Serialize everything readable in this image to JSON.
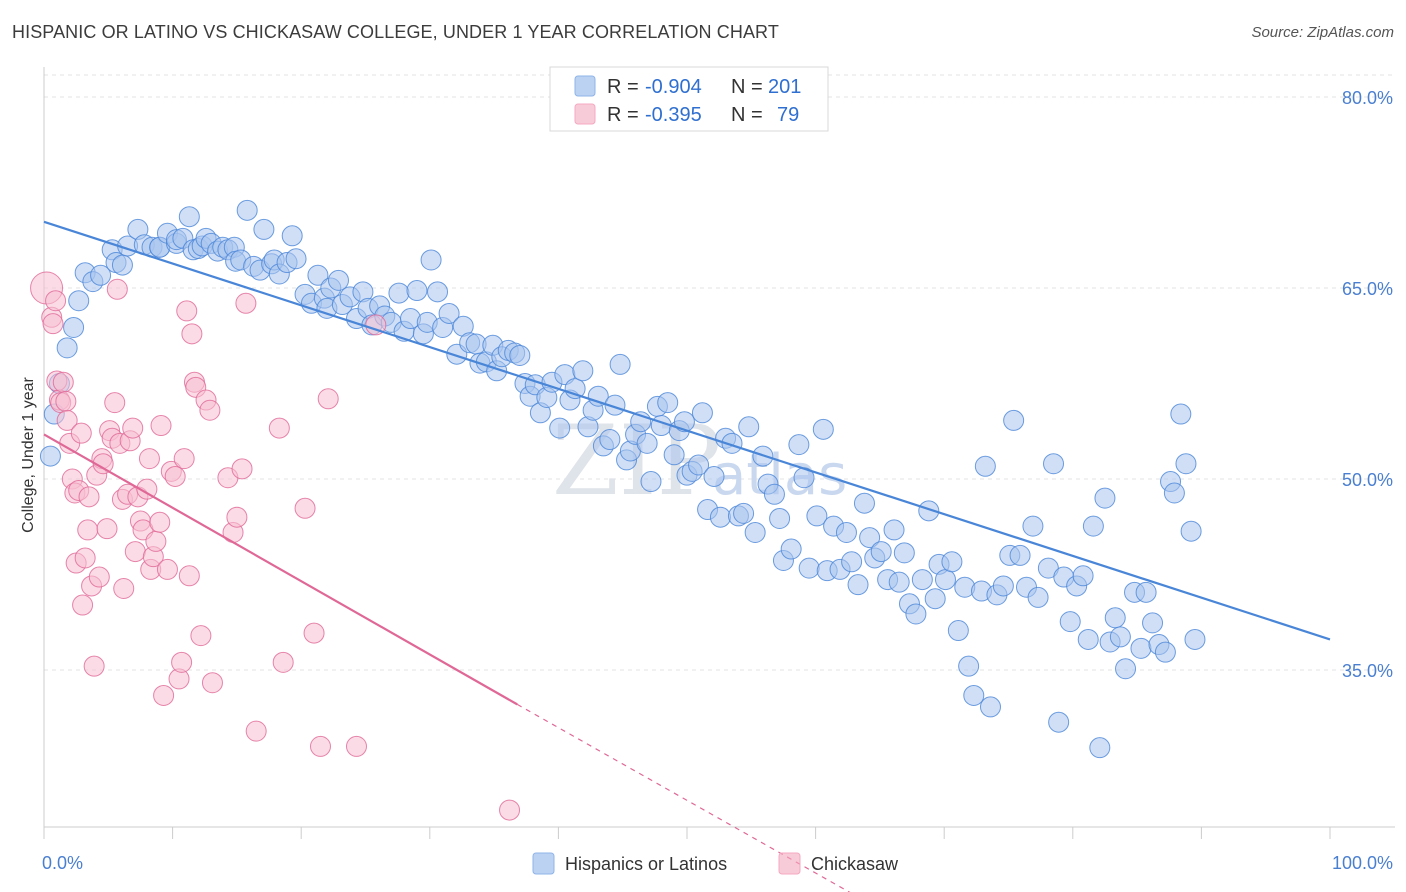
{
  "title": "HISPANIC OR LATINO VS CHICKASAW COLLEGE, UNDER 1 YEAR CORRELATION CHART",
  "source": "Source: ZipAtlas.com",
  "watermark": {
    "zip": "ZIP",
    "atlas": "atlas"
  },
  "legend_top": [
    {
      "r_label": "R =",
      "r_value": "-0.904",
      "n_label": "N =",
      "n_value": "201",
      "color": "#8fb4ea"
    },
    {
      "r_label": "R =",
      "r_value": "-0.395",
      "n_label": "N =",
      "n_value": "79",
      "color": "#f4a9c0"
    }
  ],
  "legend_bottom": [
    {
      "label": "Hispanics or Latinos",
      "color": "#8fb4ea"
    },
    {
      "label": "Chickasaw",
      "color": "#f4a9c0"
    }
  ],
  "chart_data": {
    "type": "scatter",
    "title": "HISPANIC OR LATINO VS CHICKASAW COLLEGE, UNDER 1 YEAR CORRELATION CHART",
    "xlabel": "",
    "ylabel": "College, Under 1 year",
    "xlim": [
      0,
      100
    ],
    "ylim": [
      20,
      83
    ],
    "x_tick_labels": [
      "0.0%",
      "100.0%"
    ],
    "y_ticks": [
      35,
      50,
      65,
      80
    ],
    "y_tick_labels": [
      "35.0%",
      "50.0%",
      "65.0%",
      "80.0%"
    ],
    "grid": true,
    "legend_placement": "top-center",
    "series": [
      {
        "name": "Hispanics or Latinos",
        "color": "#4a86d8",
        "fill": "#a9c5ee",
        "trend": {
          "x0": 0,
          "y0": 70.2,
          "x1": 100,
          "y1": 37.4,
          "dashed_from": null
        },
        "points": [
          [
            0.5,
            51.8
          ],
          [
            0.8,
            55.1
          ],
          [
            1.2,
            57.5
          ],
          [
            1.8,
            60.3
          ],
          [
            2.3,
            61.9
          ],
          [
            2.7,
            64.0
          ],
          [
            3.2,
            66.2
          ],
          [
            3.8,
            65.5
          ],
          [
            4.4,
            66.0
          ],
          [
            5.3,
            68.0
          ],
          [
            5.6,
            67.0
          ],
          [
            6.1,
            66.8
          ],
          [
            6.5,
            68.3
          ],
          [
            7.3,
            69.6
          ],
          [
            7.8,
            68.4
          ],
          [
            8.4,
            68.2
          ],
          [
            9.0,
            68.2
          ],
          [
            9.0,
            68.2
          ],
          [
            9.6,
            69.3
          ],
          [
            10.3,
            68.5
          ],
          [
            10.3,
            68.8
          ],
          [
            10.8,
            68.9
          ],
          [
            11.3,
            70.6
          ],
          [
            11.6,
            68.0
          ],
          [
            12.0,
            68.1
          ],
          [
            12.3,
            68.3
          ],
          [
            12.6,
            68.9
          ],
          [
            13.0,
            68.5
          ],
          [
            13.5,
            67.9
          ],
          [
            13.9,
            68.2
          ],
          [
            14.3,
            68.0
          ],
          [
            14.8,
            68.2
          ],
          [
            14.9,
            67.1
          ],
          [
            15.3,
            67.2
          ],
          [
            15.8,
            71.1
          ],
          [
            16.3,
            66.7
          ],
          [
            16.8,
            66.4
          ],
          [
            17.1,
            69.6
          ],
          [
            17.7,
            66.9
          ],
          [
            17.9,
            67.2
          ],
          [
            18.3,
            66.1
          ],
          [
            18.9,
            67.0
          ],
          [
            19.3,
            69.1
          ],
          [
            19.6,
            67.3
          ],
          [
            20.3,
            64.5
          ],
          [
            20.8,
            63.8
          ],
          [
            21.3,
            66.0
          ],
          [
            21.8,
            64.2
          ],
          [
            22.0,
            63.4
          ],
          [
            22.3,
            65.0
          ],
          [
            22.9,
            65.6
          ],
          [
            23.2,
            63.7
          ],
          [
            23.8,
            64.3
          ],
          [
            24.3,
            62.6
          ],
          [
            24.8,
            64.7
          ],
          [
            25.2,
            63.4
          ],
          [
            25.5,
            62.1
          ],
          [
            26.1,
            63.6
          ],
          [
            26.5,
            62.8
          ],
          [
            27.0,
            62.3
          ],
          [
            27.6,
            64.6
          ],
          [
            28.0,
            61.6
          ],
          [
            28.5,
            62.6
          ],
          [
            29.0,
            64.8
          ],
          [
            29.5,
            61.4
          ],
          [
            29.8,
            62.3
          ],
          [
            30.1,
            67.2
          ],
          [
            30.6,
            64.7
          ],
          [
            31.0,
            61.9
          ],
          [
            31.5,
            63.0
          ],
          [
            32.1,
            59.8
          ],
          [
            32.6,
            62.0
          ],
          [
            33.1,
            60.7
          ],
          [
            33.6,
            60.6
          ],
          [
            33.9,
            59.1
          ],
          [
            34.4,
            59.2
          ],
          [
            34.9,
            60.5
          ],
          [
            35.2,
            58.5
          ],
          [
            35.6,
            59.6
          ],
          [
            36.1,
            60.1
          ],
          [
            36.6,
            59.9
          ],
          [
            37.0,
            59.7
          ],
          [
            37.4,
            57.5
          ],
          [
            37.8,
            56.5
          ],
          [
            38.2,
            57.4
          ],
          [
            38.6,
            55.2
          ],
          [
            39.1,
            56.4
          ],
          [
            39.5,
            57.6
          ],
          [
            40.1,
            54.0
          ],
          [
            40.5,
            58.2
          ],
          [
            40.9,
            56.2
          ],
          [
            41.3,
            57.1
          ],
          [
            41.9,
            58.5
          ],
          [
            42.3,
            54.1
          ],
          [
            42.7,
            55.4
          ],
          [
            43.1,
            56.5
          ],
          [
            43.5,
            52.6
          ],
          [
            44.0,
            53.1
          ],
          [
            44.4,
            55.8
          ],
          [
            44.8,
            59.0
          ],
          [
            45.3,
            51.5
          ],
          [
            45.6,
            52.2
          ],
          [
            46.0,
            53.5
          ],
          [
            46.4,
            54.5
          ],
          [
            46.9,
            52.8
          ],
          [
            47.2,
            49.8
          ],
          [
            47.7,
            55.7
          ],
          [
            48.0,
            54.2
          ],
          [
            48.5,
            56.0
          ],
          [
            49.0,
            51.9
          ],
          [
            49.4,
            53.8
          ],
          [
            49.8,
            54.5
          ],
          [
            50.0,
            50.3
          ],
          [
            50.4,
            50.6
          ],
          [
            50.9,
            51.1
          ],
          [
            51.2,
            55.2
          ],
          [
            51.6,
            47.6
          ],
          [
            52.1,
            50.2
          ],
          [
            52.6,
            47.0
          ],
          [
            53.0,
            53.2
          ],
          [
            53.5,
            52.8
          ],
          [
            54.0,
            47.1
          ],
          [
            54.4,
            47.3
          ],
          [
            54.8,
            54.1
          ],
          [
            55.3,
            45.8
          ],
          [
            55.9,
            51.8
          ],
          [
            56.3,
            49.6
          ],
          [
            56.8,
            48.8
          ],
          [
            57.2,
            46.9
          ],
          [
            57.5,
            43.6
          ],
          [
            58.1,
            44.5
          ],
          [
            58.7,
            52.7
          ],
          [
            59.1,
            50.1
          ],
          [
            59.5,
            43.0
          ],
          [
            60.1,
            47.1
          ],
          [
            60.6,
            53.9
          ],
          [
            60.9,
            42.8
          ],
          [
            61.4,
            46.3
          ],
          [
            61.9,
            42.9
          ],
          [
            62.4,
            45.8
          ],
          [
            62.8,
            43.5
          ],
          [
            63.3,
            41.7
          ],
          [
            63.8,
            48.1
          ],
          [
            64.2,
            45.4
          ],
          [
            64.6,
            43.8
          ],
          [
            65.1,
            44.3
          ],
          [
            65.6,
            42.1
          ],
          [
            66.1,
            46.0
          ],
          [
            66.5,
            41.9
          ],
          [
            66.9,
            44.2
          ],
          [
            67.3,
            40.2
          ],
          [
            67.8,
            39.4
          ],
          [
            68.3,
            42.1
          ],
          [
            68.8,
            47.5
          ],
          [
            69.3,
            40.6
          ],
          [
            69.6,
            43.3
          ],
          [
            70.1,
            42.1
          ],
          [
            70.6,
            43.5
          ],
          [
            71.1,
            38.1
          ],
          [
            71.6,
            41.5
          ],
          [
            71.9,
            35.3
          ],
          [
            72.3,
            33.0
          ],
          [
            72.9,
            41.2
          ],
          [
            73.2,
            51.0
          ],
          [
            73.6,
            32.1
          ],
          [
            74.1,
            40.9
          ],
          [
            74.6,
            41.6
          ],
          [
            75.1,
            44.0
          ],
          [
            75.4,
            54.6
          ],
          [
            75.9,
            44.0
          ],
          [
            76.4,
            41.5
          ],
          [
            76.9,
            46.3
          ],
          [
            77.3,
            40.7
          ],
          [
            78.1,
            43.0
          ],
          [
            78.5,
            51.2
          ],
          [
            78.9,
            30.9
          ],
          [
            79.3,
            42.3
          ],
          [
            79.8,
            38.8
          ],
          [
            80.3,
            41.6
          ],
          [
            80.8,
            42.4
          ],
          [
            81.2,
            37.4
          ],
          [
            81.6,
            46.3
          ],
          [
            82.1,
            28.9
          ],
          [
            82.5,
            48.5
          ],
          [
            82.9,
            37.2
          ],
          [
            83.3,
            39.1
          ],
          [
            83.7,
            37.6
          ],
          [
            84.1,
            35.1
          ],
          [
            84.8,
            41.1
          ],
          [
            85.3,
            36.7
          ],
          [
            85.7,
            41.1
          ],
          [
            86.2,
            38.7
          ],
          [
            86.7,
            37.0
          ],
          [
            87.2,
            36.4
          ],
          [
            87.6,
            49.8
          ],
          [
            87.9,
            48.9
          ],
          [
            88.4,
            55.1
          ],
          [
            88.8,
            51.2
          ],
          [
            89.2,
            45.9
          ],
          [
            89.5,
            37.4
          ]
        ]
      },
      {
        "name": "Chickasaw",
        "color": "#e06896",
        "fill": "#f7c0d2",
        "trend": {
          "x0": 0,
          "y0": 53.5,
          "x1": 36.8,
          "y1": 32.3,
          "dashed_to_x": 63.6,
          "dashed_to_y": 17.0
        },
        "points": [
          [
            0.2,
            65.0
          ],
          [
            0.6,
            62.7
          ],
          [
            0.7,
            62.2
          ],
          [
            0.9,
            64.0
          ],
          [
            1.0,
            57.7
          ],
          [
            1.2,
            56.2
          ],
          [
            1.3,
            56.0
          ],
          [
            1.5,
            57.6
          ],
          [
            1.7,
            56.1
          ],
          [
            1.8,
            54.6
          ],
          [
            2.0,
            52.8
          ],
          [
            2.2,
            50.0
          ],
          [
            2.4,
            48.9
          ],
          [
            2.5,
            43.4
          ],
          [
            2.7,
            49.1
          ],
          [
            2.9,
            53.6
          ],
          [
            3.0,
            40.1
          ],
          [
            3.2,
            43.8
          ],
          [
            3.4,
            46.0
          ],
          [
            3.5,
            48.6
          ],
          [
            3.7,
            41.6
          ],
          [
            3.9,
            35.3
          ],
          [
            4.1,
            50.3
          ],
          [
            4.3,
            42.3
          ],
          [
            4.5,
            51.6
          ],
          [
            4.6,
            51.2
          ],
          [
            4.9,
            46.1
          ],
          [
            5.1,
            53.8
          ],
          [
            5.3,
            53.2
          ],
          [
            5.5,
            56.0
          ],
          [
            5.7,
            64.9
          ],
          [
            5.9,
            52.8
          ],
          [
            6.1,
            48.4
          ],
          [
            6.2,
            41.4
          ],
          [
            6.5,
            48.8
          ],
          [
            6.7,
            53.0
          ],
          [
            6.9,
            54.0
          ],
          [
            7.1,
            44.3
          ],
          [
            7.3,
            48.6
          ],
          [
            7.5,
            46.7
          ],
          [
            7.7,
            46.0
          ],
          [
            8.0,
            49.2
          ],
          [
            8.2,
            51.6
          ],
          [
            8.3,
            42.9
          ],
          [
            8.5,
            43.9
          ],
          [
            8.7,
            45.1
          ],
          [
            9.0,
            46.6
          ],
          [
            9.1,
            54.2
          ],
          [
            9.3,
            33.0
          ],
          [
            9.6,
            42.9
          ],
          [
            9.9,
            50.6
          ],
          [
            10.2,
            50.2
          ],
          [
            10.5,
            34.3
          ],
          [
            10.7,
            35.6
          ],
          [
            10.9,
            51.6
          ],
          [
            11.1,
            63.2
          ],
          [
            11.3,
            42.4
          ],
          [
            11.5,
            61.4
          ],
          [
            11.7,
            57.6
          ],
          [
            11.8,
            57.2
          ],
          [
            12.2,
            37.7
          ],
          [
            12.6,
            56.2
          ],
          [
            12.9,
            55.4
          ],
          [
            13.1,
            34.0
          ],
          [
            14.3,
            50.1
          ],
          [
            14.7,
            45.8
          ],
          [
            15.0,
            47.0
          ],
          [
            15.4,
            50.8
          ],
          [
            15.7,
            63.8
          ],
          [
            16.5,
            30.2
          ],
          [
            18.3,
            54.0
          ],
          [
            18.6,
            35.6
          ],
          [
            20.3,
            47.7
          ],
          [
            21.0,
            37.9
          ],
          [
            21.5,
            29.0
          ],
          [
            22.1,
            56.3
          ],
          [
            24.3,
            29.0
          ],
          [
            25.8,
            62.1
          ],
          [
            36.2,
            24.0
          ]
        ]
      }
    ]
  }
}
